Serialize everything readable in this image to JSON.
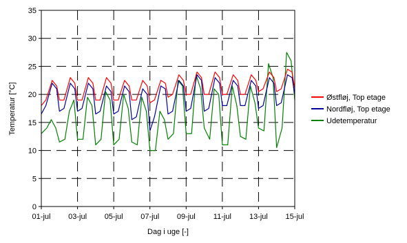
{
  "chart_data": {
    "type": "line",
    "title": "",
    "xlabel": "Dag i uge [-]",
    "ylabel": "Temperatur [°C]",
    "xlim": [
      0,
      14
    ],
    "ylim": [
      0,
      35
    ],
    "x_ticks": [
      {
        "value": 0,
        "label": "01-jul"
      },
      {
        "value": 2,
        "label": "03-jul"
      },
      {
        "value": 4,
        "label": "05-jul"
      },
      {
        "value": 6,
        "label": "07-jul"
      },
      {
        "value": 8,
        "label": "09-jul"
      },
      {
        "value": 10,
        "label": "11-jul"
      },
      {
        "value": 12,
        "label": "13-jul"
      },
      {
        "value": 14,
        "label": "15-jul"
      }
    ],
    "y_ticks": [
      0,
      5,
      10,
      15,
      20,
      25,
      30,
      35
    ],
    "grid": true,
    "legend_position": "right",
    "series": [
      {
        "name": "Østfløj, Top etage",
        "color": "#ff0000",
        "x": [
          0,
          0.25,
          0.6,
          0.85,
          1,
          1.25,
          1.6,
          1.85,
          2,
          2.25,
          2.6,
          2.85,
          3,
          3.25,
          3.6,
          3.85,
          4,
          4.25,
          4.6,
          4.85,
          5,
          5.25,
          5.6,
          5.85,
          6,
          6.25,
          6.6,
          6.85,
          7,
          7.25,
          7.6,
          7.85,
          8,
          8.25,
          8.6,
          8.85,
          9,
          9.25,
          9.6,
          9.85,
          10,
          10.25,
          10.6,
          10.85,
          11,
          11.25,
          11.6,
          11.85,
          12,
          12.25,
          12.6,
          12.85,
          13,
          13.25,
          13.6,
          13.85,
          14
        ],
        "y": [
          18,
          19,
          22.5,
          21.5,
          19,
          19,
          23,
          22,
          19,
          19,
          23,
          22,
          19,
          19,
          23,
          22,
          19,
          19,
          22.5,
          21.5,
          19,
          19,
          22.5,
          21.5,
          18.5,
          19,
          22.5,
          22,
          19.5,
          20,
          23.5,
          22.5,
          20,
          20,
          24,
          23,
          20,
          20,
          24,
          23,
          20,
          20,
          23.5,
          22.5,
          20,
          20,
          23.5,
          22.5,
          20.5,
          21,
          24,
          23,
          20.5,
          21,
          24.5,
          24,
          21
        ]
      },
      {
        "name": "Nordfløj, Top etage",
        "color": "#000099",
        "x": [
          0,
          0.25,
          0.6,
          0.85,
          1,
          1.25,
          1.6,
          1.85,
          2,
          2.25,
          2.6,
          2.85,
          3,
          3.25,
          3.6,
          3.85,
          4,
          4.25,
          4.6,
          4.85,
          5,
          5.25,
          5.6,
          5.85,
          6,
          6.25,
          6.6,
          6.85,
          7,
          7.25,
          7.6,
          7.85,
          8,
          8.25,
          8.6,
          8.85,
          9,
          9.25,
          9.6,
          9.85,
          10,
          10.25,
          10.6,
          10.85,
          11,
          11.25,
          11.6,
          11.85,
          12,
          12.25,
          12.6,
          12.85,
          13,
          13.25,
          13.6,
          13.85,
          14
        ],
        "y": [
          16.5,
          18,
          22,
          21,
          17,
          17.5,
          22,
          21,
          17,
          17.5,
          22,
          21,
          16.5,
          17,
          21.5,
          20.5,
          16.5,
          17,
          21.5,
          20.5,
          15.5,
          16,
          21,
          20,
          13.5,
          16,
          21.5,
          21,
          16.5,
          17,
          22.5,
          21.5,
          17,
          17.5,
          23.5,
          22.5,
          17,
          17.5,
          23,
          22,
          18,
          18,
          22.5,
          21.5,
          18,
          18,
          22.5,
          21.5,
          17.5,
          18,
          23,
          22,
          18,
          18.5,
          23.5,
          23,
          20
        ]
      },
      {
        "name": "Udetemperatur",
        "color": "#008000",
        "x": [
          0,
          0.3,
          0.55,
          0.8,
          1,
          1.3,
          1.55,
          1.8,
          2,
          2.3,
          2.55,
          2.8,
          3,
          3.3,
          3.55,
          3.8,
          4,
          4.3,
          4.55,
          4.8,
          5,
          5.3,
          5.55,
          5.8,
          6,
          6.3,
          6.55,
          6.8,
          7,
          7.3,
          7.55,
          7.8,
          8,
          8.3,
          8.55,
          8.8,
          9,
          9.3,
          9.55,
          9.8,
          10,
          10.3,
          10.55,
          10.8,
          11,
          11.3,
          11.55,
          11.8,
          12,
          12.3,
          12.55,
          12.8,
          13,
          13.3,
          13.55,
          13.8,
          14
        ],
        "y": [
          13,
          14,
          15.5,
          14,
          11.5,
          12,
          17,
          19,
          12,
          12,
          19.5,
          18,
          11,
          12,
          20.5,
          19,
          11,
          12,
          20,
          17.5,
          11.5,
          11,
          19.5,
          17,
          10,
          10,
          17,
          15.5,
          12,
          13,
          22.5,
          21.5,
          13,
          13,
          23.5,
          21,
          14,
          12,
          21,
          20,
          11,
          11,
          21.5,
          18,
          12.5,
          12,
          21.5,
          18.5,
          14,
          13.5,
          25.5,
          23,
          10.5,
          14,
          27.5,
          26,
          19
        ]
      }
    ]
  }
}
